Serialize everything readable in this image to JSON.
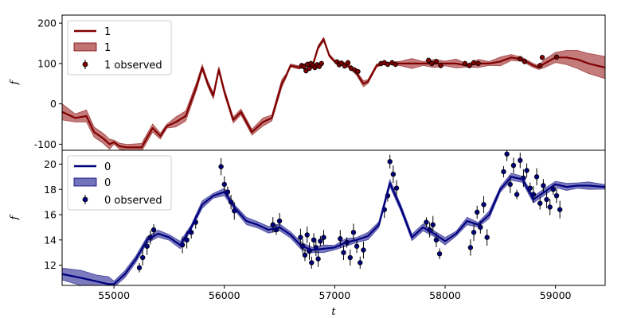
{
  "chart_data": [
    {
      "type": "line",
      "panel": "top",
      "xlabel": "",
      "ylabel": "f",
      "xlim": [
        54530,
        59450
      ],
      "ylim": [
        -115,
        220
      ],
      "yticks": [
        -100,
        0,
        100,
        200
      ],
      "show_xticklabels": false,
      "colors": {
        "line": "#800000",
        "band": "#b55a5a",
        "points": "#800000"
      },
      "legend": {
        "position": "upper-left",
        "entries": [
          "1",
          "1",
          "1 observed"
        ]
      },
      "series": [
        {
          "name": "1",
          "kind": "mean",
          "x": [
            54530,
            54650,
            54750,
            54820,
            54900,
            54960,
            55000,
            55050,
            55120,
            55250,
            55350,
            55420,
            55480,
            55560,
            55650,
            55750,
            55800,
            55850,
            55900,
            55950,
            56000,
            56080,
            56150,
            56250,
            56350,
            56430,
            56520,
            56560,
            56600,
            56680,
            56760,
            56800,
            56850,
            56900,
            56950,
            57000,
            57080,
            57150,
            57200,
            57260,
            57300,
            57380,
            57440,
            57500,
            57600,
            57700,
            57800,
            57900,
            58000,
            58100,
            58200,
            58300,
            58400,
            58500,
            58600,
            58700,
            58800,
            58850,
            58900,
            59000,
            59100,
            59200,
            59300,
            59450
          ],
          "y": [
            -20,
            -35,
            -30,
            -70,
            -85,
            -100,
            -95,
            -105,
            -108,
            -108,
            -60,
            -80,
            -55,
            -45,
            -30,
            45,
            90,
            50,
            20,
            85,
            30,
            -40,
            -20,
            -70,
            -45,
            -35,
            50,
            70,
            95,
            90,
            100,
            95,
            140,
            160,
            120,
            105,
            100,
            90,
            75,
            50,
            55,
            95,
            100,
            100,
            100,
            100,
            100,
            100,
            100,
            100,
            95,
            100,
            100,
            105,
            115,
            110,
            95,
            90,
            100,
            115,
            115,
            110,
            100,
            90
          ],
          "band_width": [
            40,
            20,
            30,
            25,
            25,
            25,
            10,
            15,
            15,
            20,
            20,
            15,
            10,
            25,
            25,
            20,
            15,
            15,
            15,
            15,
            15,
            15,
            15,
            15,
            20,
            15,
            20,
            10,
            8,
            8,
            8,
            10,
            10,
            10,
            8,
            6,
            8,
            10,
            10,
            15,
            10,
            8,
            6,
            6,
            12,
            25,
            10,
            20,
            12,
            22,
            8,
            20,
            10,
            22,
            15,
            10,
            10,
            10,
            20,
            25,
            35,
            45,
            50,
            55
          ]
        },
        {
          "name": "1 observed",
          "kind": "points",
          "points": [
            [
              56700,
              95
            ],
            [
              56720,
              92
            ],
            [
              56740,
              82
            ],
            [
              56755,
              98
            ],
            [
              56770,
              88
            ],
            [
              56785,
              100
            ],
            [
              56800,
              95
            ],
            [
              56820,
              90
            ],
            [
              56840,
              97
            ],
            [
              56860,
              93
            ],
            [
              56880,
              100
            ],
            [
              57020,
              104
            ],
            [
              57040,
              97
            ],
            [
              57060,
              101
            ],
            [
              57090,
              94
            ],
            [
              57120,
              102
            ],
            [
              57150,
              88
            ],
            [
              57180,
              84
            ],
            [
              57210,
              80
            ],
            [
              57420,
              100
            ],
            [
              57450,
              102
            ],
            [
              57480,
              98
            ],
            [
              57520,
              102
            ],
            [
              57550,
              98
            ],
            [
              57850,
              108
            ],
            [
              57880,
              100
            ],
            [
              57920,
              105
            ],
            [
              57960,
              95
            ],
            [
              58180,
              100
            ],
            [
              58220,
              95
            ],
            [
              58260,
              102
            ],
            [
              58300,
              100
            ],
            [
              58680,
              112
            ],
            [
              58720,
              105
            ],
            [
              58860,
              95
            ],
            [
              58880,
              115
            ],
            [
              59010,
              116
            ]
          ]
        }
      ]
    },
    {
      "type": "line",
      "panel": "bottom",
      "xlabel": "t",
      "ylabel": "f",
      "xlim": [
        54530,
        59450
      ],
      "ylim": [
        10.4,
        21.1
      ],
      "yticks": [
        12,
        14,
        16,
        18,
        20
      ],
      "xticks": [
        55000,
        56000,
        57000,
        58000,
        59000
      ],
      "colors": {
        "line": "#00007f",
        "band": "#5a5aae",
        "points": "#000080"
      },
      "legend": {
        "position": "upper-left",
        "entries": [
          "0",
          "0",
          "0 observed"
        ]
      },
      "series": [
        {
          "name": "0",
          "kind": "mean",
          "x": [
            54530,
            54700,
            54850,
            54950,
            55000,
            55100,
            55200,
            55300,
            55400,
            55500,
            55600,
            55700,
            55800,
            55900,
            56000,
            56100,
            56200,
            56300,
            56400,
            56500,
            56600,
            56700,
            56800,
            56900,
            57000,
            57100,
            57200,
            57300,
            57400,
            57500,
            57600,
            57700,
            57800,
            57900,
            58000,
            58100,
            58200,
            58300,
            58400,
            58500,
            58600,
            58700,
            58800,
            58900,
            59000,
            59100,
            59200,
            59300,
            59450
          ],
          "y": [
            11.3,
            11.0,
            10.7,
            10.5,
            10.5,
            11.3,
            12.5,
            14.0,
            14.5,
            14.2,
            13.6,
            15.0,
            16.8,
            17.5,
            17.8,
            16.5,
            15.5,
            15.2,
            14.8,
            15.0,
            14.4,
            13.5,
            13.2,
            13.3,
            13.4,
            13.8,
            14.0,
            14.3,
            15.2,
            18.5,
            16.5,
            14.2,
            15.0,
            14.5,
            13.9,
            14.5,
            15.5,
            15.2,
            16.0,
            18.0,
            19.0,
            18.8,
            17.2,
            17.8,
            18.4,
            18.2,
            18.3,
            18.3,
            18.2
          ]
        },
        {
          "name": "0 observed",
          "kind": "points",
          "points": [
            [
              55230,
              11.8
            ],
            [
              55260,
              12.6
            ],
            [
              55300,
              13.5
            ],
            [
              55330,
              14.2
            ],
            [
              55360,
              14.8
            ],
            [
              55620,
              13.6
            ],
            [
              55660,
              14.0
            ],
            [
              55700,
              14.6
            ],
            [
              55740,
              15.4
            ],
            [
              55970,
              19.8
            ],
            [
              56000,
              18.4
            ],
            [
              56030,
              17.8
            ],
            [
              56060,
              17.0
            ],
            [
              56090,
              16.3
            ],
            [
              56440,
              15.2
            ],
            [
              56470,
              14.8
            ],
            [
              56500,
              15.5
            ],
            [
              56690,
              14.2
            ],
            [
              56710,
              13.5
            ],
            [
              56730,
              12.8
            ],
            [
              56750,
              14.4
            ],
            [
              56770,
              13.1
            ],
            [
              56790,
              12.2
            ],
            [
              56810,
              14.0
            ],
            [
              56830,
              13.4
            ],
            [
              56850,
              12.5
            ],
            [
              56870,
              13.9
            ],
            [
              56900,
              14.2
            ],
            [
              57050,
              14.1
            ],
            [
              57080,
              13.0
            ],
            [
              57110,
              13.8
            ],
            [
              57140,
              12.6
            ],
            [
              57170,
              14.6
            ],
            [
              57200,
              13.5
            ],
            [
              57230,
              12.2
            ],
            [
              57260,
              13.2
            ],
            [
              57450,
              16.4
            ],
            [
              57480,
              17.5
            ],
            [
              57500,
              20.2
            ],
            [
              57530,
              19.2
            ],
            [
              57560,
              18.1
            ],
            [
              57830,
              15.4
            ],
            [
              57860,
              14.8
            ],
            [
              57890,
              15.2
            ],
            [
              57920,
              14.0
            ],
            [
              57950,
              12.9
            ],
            [
              58230,
              13.4
            ],
            [
              58260,
              14.6
            ],
            [
              58290,
              16.2
            ],
            [
              58320,
              15.0
            ],
            [
              58350,
              16.8
            ],
            [
              58380,
              14.2
            ],
            [
              58530,
              19.4
            ],
            [
              58560,
              20.8
            ],
            [
              58590,
              18.4
            ],
            [
              58620,
              19.9
            ],
            [
              58650,
              17.6
            ],
            [
              58680,
              20.3
            ],
            [
              58710,
              18.9
            ],
            [
              58740,
              19.5
            ],
            [
              58770,
              18.1
            ],
            [
              58800,
              17.6
            ],
            [
              58830,
              19.0
            ],
            [
              58860,
              16.9
            ],
            [
              58890,
              18.3
            ],
            [
              58920,
              17.2
            ],
            [
              58950,
              16.6
            ],
            [
              58980,
              18.0
            ],
            [
              59010,
              17.5
            ],
            [
              59040,
              16.4
            ]
          ]
        }
      ]
    }
  ]
}
